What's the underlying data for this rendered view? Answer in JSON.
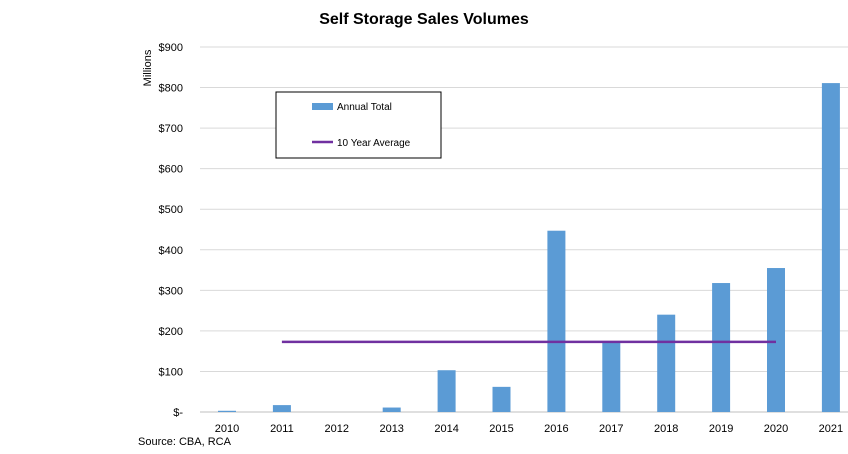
{
  "chart_data": {
    "type": "bar",
    "title": "Self Storage Sales Volumes",
    "ylabel": "Millions",
    "xlabel": "",
    "categories": [
      "2010",
      "2011",
      "2012",
      "2013",
      "2014",
      "2015",
      "2016",
      "2017",
      "2018",
      "2019",
      "2020",
      "2021"
    ],
    "series": [
      {
        "name": "Annual Total",
        "type": "bar",
        "color": "#5b9bd5",
        "values": [
          3,
          17,
          0,
          11,
          103,
          62,
          447,
          173,
          240,
          318,
          355,
          811
        ]
      },
      {
        "name": "10 Year Average",
        "type": "line",
        "color": "#7030a0",
        "value": 173,
        "from": "2011",
        "to": "2020"
      }
    ],
    "ylim": [
      0,
      900
    ],
    "yticks": [
      0,
      100,
      200,
      300,
      400,
      500,
      600,
      700,
      800,
      900
    ],
    "ytick_labels": [
      "$-",
      "$100",
      "$200",
      "$300",
      "$400",
      "$500",
      "$600",
      "$700",
      "$800",
      "$900"
    ],
    "grid": true,
    "legend_position": "top-left",
    "source": "Source: CBA, RCA"
  }
}
